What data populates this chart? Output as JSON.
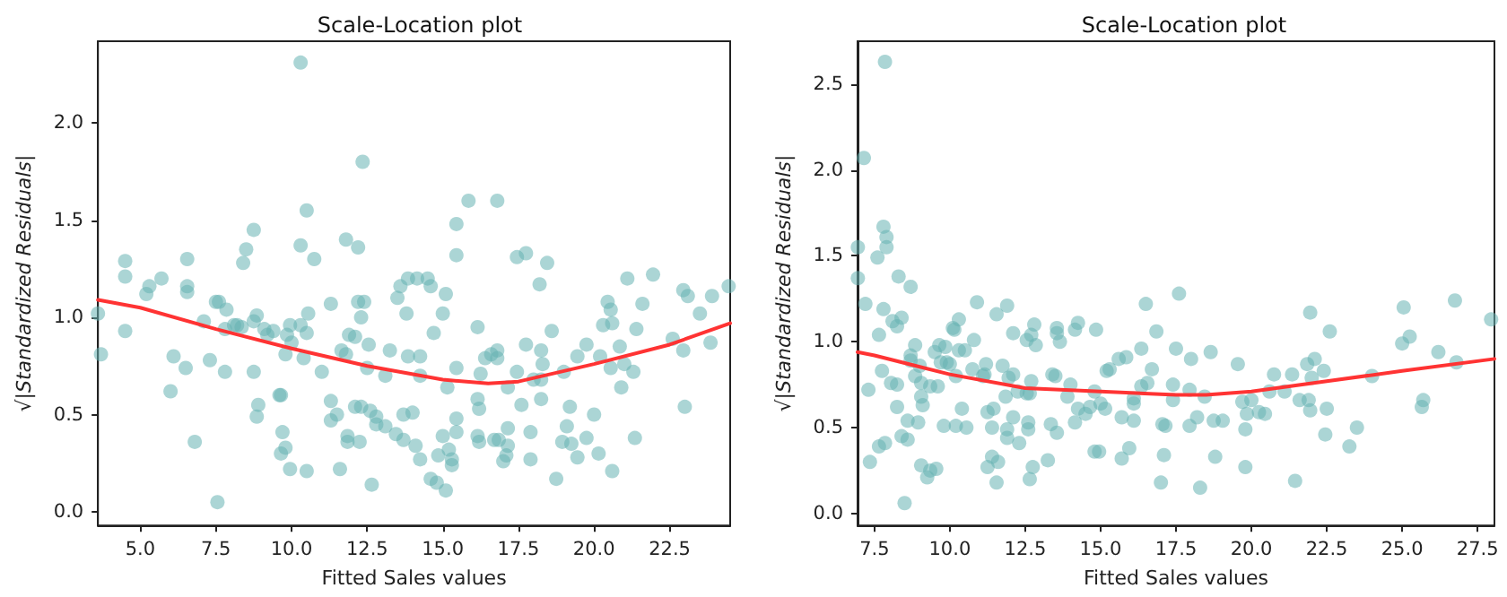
{
  "chart_data": [
    {
      "type": "scatter",
      "title": "Scale-Location plot",
      "xlabel": "Fitted Sales values",
      "ylabel": "√|Standardized Residuals|",
      "xlim": [
        3.6,
        24.5
      ],
      "ylim": [
        -0.07,
        2.42
      ],
      "xticks": [
        {
          "value": 5,
          "label": "5.0"
        },
        {
          "value": 7.5,
          "label": "7.5"
        },
        {
          "value": 10,
          "label": "10.0"
        },
        {
          "value": 12.5,
          "label": "12.5"
        },
        {
          "value": 15,
          "label": "15.0"
        },
        {
          "value": 17.5,
          "label": "17.5"
        },
        {
          "value": 20,
          "label": "20.0"
        },
        {
          "value": 22.5,
          "label": "22.5"
        }
      ],
      "yticks": [
        {
          "value": 0,
          "label": "0.0"
        },
        {
          "value": 0.5,
          "label": "0.5"
        },
        {
          "value": 1,
          "label": "1.0"
        },
        {
          "value": 1.5,
          "label": "1.5"
        },
        {
          "value": 2,
          "label": "2.0"
        }
      ],
      "series": [
        {
          "type": "scatter",
          "marker": "circle",
          "color": "#66b3b3",
          "x": [
            3.6,
            3.7,
            4.5,
            4.5,
            4.5,
            5.2,
            5.3,
            5.7,
            6.1,
            6.0,
            6.55,
            6.55,
            6.55,
            6.5,
            6.8,
            7.1,
            7.3,
            7.5,
            7.6,
            7.55,
            7.85,
            7.8,
            7.8,
            8.1,
            8.2,
            8.35,
            8.4,
            8.5,
            8.75,
            8.85,
            8.75,
            8.75,
            8.9,
            8.85,
            9.1,
            9.2,
            9.4,
            9.6,
            9.65,
            9.7,
            9.65,
            9.8,
            9.8,
            9.85,
            9.95,
            10.0,
            9.95,
            10.3,
            10.3,
            10.3,
            10.4,
            10.5,
            10.5,
            10.5,
            10.55,
            10.75,
            11.0,
            11.3,
            11.3,
            11.3,
            11.5,
            11.6,
            11.65,
            11.8,
            11.8,
            11.85,
            11.85,
            11.9,
            12.1,
            12.1,
            12.2,
            12.2,
            12.25,
            12.3,
            12.3,
            12.35,
            12.4,
            12.5,
            12.55,
            12.6,
            12.65,
            12.8,
            12.8,
            13.1,
            13.1,
            13.25,
            13.45,
            13.5,
            13.6,
            13.7,
            13.7,
            13.8,
            13.85,
            13.85,
            14.0,
            14.1,
            14.15,
            14.25,
            14.25,
            14.25,
            14.5,
            14.6,
            14.6,
            14.7,
            14.8,
            14.85,
            15.0,
            15.0,
            15.1,
            15.1,
            15.15,
            15.2,
            15.3,
            15.3,
            15.45,
            15.45,
            15.45,
            15.45,
            15.45,
            15.85,
            16.15,
            16.15,
            16.15,
            16.2,
            16.2,
            16.25,
            16.4,
            16.6,
            16.7,
            16.8,
            16.8,
            16.8,
            16.85,
            17.0,
            17.1,
            17.15,
            17.15,
            17.15,
            17.45,
            17.45,
            17.6,
            17.75,
            17.75,
            17.9,
            17.9,
            18.0,
            18.2,
            18.25,
            18.25,
            18.25,
            18.3,
            18.45,
            18.6,
            18.75,
            19.0,
            19.1,
            18.95,
            19.2,
            19.25,
            19.45,
            19.45,
            19.75,
            19.75,
            20.0,
            20.15,
            20.2,
            20.3,
            20.45,
            20.55,
            20.55,
            20.6,
            20.6,
            20.85,
            20.9,
            21.0,
            21.1,
            21.3,
            21.35,
            21.4,
            21.6,
            21.95,
            22.6,
            22.95,
            23.1,
            22.95,
            23.0,
            23.5,
            23.85,
            23.9,
            24.45
          ],
          "values": [
            1.02,
            0.81,
            1.29,
            1.21,
            0.93,
            1.12,
            1.16,
            1.2,
            0.8,
            0.62,
            1.3,
            1.16,
            1.13,
            0.74,
            0.36,
            0.98,
            0.78,
            1.08,
            1.08,
            0.05,
            1.04,
            0.94,
            0.72,
            0.96,
            0.96,
            0.95,
            1.28,
            1.35,
            1.45,
            1.01,
            0.98,
            0.72,
            0.55,
            0.49,
            0.94,
            0.91,
            0.93,
            0.6,
            0.6,
            0.41,
            0.3,
            0.33,
            0.81,
            0.91,
            0.96,
            0.87,
            0.22,
            0.96,
            2.31,
            1.37,
            0.79,
            1.55,
            0.21,
            0.92,
            1.02,
            1.3,
            0.72,
            0.57,
            1.07,
            0.47,
            0.5,
            0.22,
            0.83,
            1.4,
            0.81,
            0.39,
            0.36,
            0.91,
            0.54,
            0.9,
            1.36,
            1.08,
            0.36,
            1.0,
            0.54,
            1.8,
            1.08,
            0.74,
            0.86,
            0.52,
            0.14,
            0.49,
            0.45,
            0.7,
            0.44,
            0.83,
            0.4,
            1.1,
            1.16,
            0.5,
            0.37,
            1.02,
            1.2,
            0.8,
            0.51,
            0.34,
            1.2,
            0.8,
            0.7,
            0.27,
            1.2,
            1.16,
            0.17,
            0.92,
            0.15,
            0.29,
            1.02,
            0.39,
            1.12,
            0.11,
            0.64,
            0.32,
            0.27,
            0.24,
            1.48,
            1.32,
            0.48,
            0.74,
            0.41,
            1.6,
            0.95,
            0.58,
            0.39,
            0.53,
            0.36,
            0.71,
            0.79,
            0.81,
            0.37,
            1.6,
            0.83,
            0.79,
            0.37,
            0.26,
            0.29,
            0.43,
            0.34,
            0.64,
            0.72,
            1.31,
            0.55,
            0.86,
            1.33,
            0.41,
            0.27,
            0.68,
            1.17,
            0.83,
            0.68,
            0.58,
            0.76,
            1.28,
            0.93,
            0.17,
            0.72,
            0.44,
            0.36,
            0.54,
            0.35,
            0.28,
            0.8,
            0.86,
            0.38,
            0.5,
            0.3,
            0.8,
            0.96,
            1.08,
            1.04,
            0.74,
            0.97,
            0.21,
            0.85,
            0.64,
            0.76,
            1.2,
            0.72,
            0.38,
            0.94,
            1.07,
            1.22,
            0.89,
            1.14,
            1.11,
            0.83,
            0.54,
            1.02,
            0.87,
            1.11,
            1.16
          ]
        },
        {
          "type": "line",
          "marker": "none",
          "color": "#ff3333",
          "x": [
            3.6,
            5,
            7.5,
            10,
            12.5,
            15,
            16.5,
            17.5,
            20,
            22.5,
            24.5
          ],
          "values": [
            1.09,
            1.05,
            0.94,
            0.84,
            0.75,
            0.68,
            0.66,
            0.67,
            0.76,
            0.86,
            0.97
          ]
        }
      ]
    },
    {
      "type": "scatter",
      "title": "Scale-Location plot",
      "xlabel": "Fitted Sales values",
      "ylabel": "√|Standardized Residuals|",
      "xlim": [
        6.94,
        28.06
      ],
      "ylim": [
        -0.07,
        2.75
      ],
      "xticks": [
        {
          "value": 7.5,
          "label": "7.5"
        },
        {
          "value": 10,
          "label": "10.0"
        },
        {
          "value": 12.5,
          "label": "12.5"
        },
        {
          "value": 15,
          "label": "15.0"
        },
        {
          "value": 17.5,
          "label": "17.5"
        },
        {
          "value": 20,
          "label": "20.0"
        },
        {
          "value": 22.5,
          "label": "22.5"
        },
        {
          "value": 25,
          "label": "25.0"
        },
        {
          "value": 27.5,
          "label": "27.5"
        }
      ],
      "yticks": [
        {
          "value": 0,
          "label": "0.0"
        },
        {
          "value": 0.5,
          "label": "0.5"
        },
        {
          "value": 1,
          "label": "1.0"
        },
        {
          "value": 1.5,
          "label": "1.5"
        },
        {
          "value": 2,
          "label": "2.0"
        },
        {
          "value": 2.5,
          "label": "2.5"
        }
      ],
      "series": [
        {
          "type": "scatter",
          "marker": "circle",
          "color": "#66b3b3",
          "x": [
            6.95,
            6.95,
            7.15,
            7.2,
            7.3,
            7.35,
            7.6,
            7.65,
            7.75,
            7.65,
            7.8,
            7.8,
            7.85,
            7.9,
            7.9,
            7.85,
            8.05,
            8.1,
            8.25,
            8.25,
            8.25,
            8.3,
            8.4,
            8.4,
            8.5,
            8.6,
            8.6,
            8.7,
            8.7,
            8.7,
            8.85,
            8.85,
            8.95,
            9.0,
            9.05,
            9.05,
            9.1,
            9.05,
            9.25,
            9.35,
            9.35,
            9.5,
            9.55,
            9.6,
            9.65,
            9.7,
            9.8,
            9.85,
            9.9,
            10.0,
            10.1,
            10.15,
            10.2,
            10.2,
            10.3,
            10.3,
            10.4,
            10.5,
            10.55,
            10.8,
            10.75,
            10.9,
            11.1,
            11.15,
            11.2,
            11.25,
            11.25,
            11.4,
            11.4,
            11.45,
            11.55,
            11.55,
            11.6,
            11.75,
            11.85,
            11.9,
            11.9,
            11.9,
            11.95,
            12.1,
            12.1,
            12.1,
            12.25,
            12.3,
            12.55,
            12.55,
            12.6,
            12.6,
            12.7,
            12.7,
            12.65,
            12.65,
            12.75,
            12.8,
            12.85,
            13.25,
            13.35,
            13.4,
            13.5,
            13.55,
            13.55,
            13.55,
            13.65,
            13.9,
            14.0,
            14.15,
            14.15,
            14.25,
            14.25,
            14.5,
            14.65,
            14.8,
            14.8,
            14.85,
            14.95,
            15.0,
            15.15,
            15.2,
            15.3,
            15.6,
            15.7,
            15.7,
            15.85,
            15.95,
            16.1,
            16.1,
            16.1,
            16.35,
            16.35,
            16.5,
            16.55,
            16.7,
            16.85,
            17.0,
            17.05,
            17.1,
            17.15,
            17.4,
            17.4,
            17.5,
            17.6,
            17.95,
            17.95,
            18.0,
            18.2,
            18.3,
            18.45,
            18.65,
            18.75,
            18.8,
            19.05,
            19.55,
            19.7,
            19.8,
            19.8,
            19.85,
            20.0,
            20.25,
            20.45,
            20.6,
            20.75,
            21.1,
            21.35,
            21.45,
            21.6,
            21.85,
            21.9,
            21.95,
            21.95,
            22.0,
            22.1,
            22.4,
            22.45,
            22.5,
            22.6,
            23.25,
            23.5,
            24.0,
            25.0,
            25.05,
            25.25,
            25.65,
            25.7,
            26.2,
            26.75,
            26.8,
            27.95
          ],
          "values": [
            1.55,
            1.37,
            2.07,
            1.22,
            0.72,
            0.3,
            1.49,
            1.04,
            0.83,
            0.39,
            1.19,
            1.67,
            2.63,
            1.61,
            1.55,
            0.41,
            0.76,
            1.12,
            1.09,
            0.75,
            0.62,
            1.38,
            1.14,
            0.45,
            0.06,
            0.54,
            0.43,
            1.32,
            0.92,
            0.89,
            0.98,
            0.8,
            0.53,
            0.86,
            0.76,
            0.68,
            0.63,
            0.28,
            0.21,
            0.74,
            0.25,
            0.94,
            0.26,
            0.74,
            0.98,
            0.88,
            0.51,
            0.97,
            0.88,
            0.87,
            1.08,
            1.07,
            0.8,
            0.51,
            1.13,
            0.95,
            0.61,
            0.95,
            0.5,
            1.01,
            0.84,
            1.23,
            0.8,
            0.81,
            0.87,
            0.59,
            0.27,
            0.5,
            0.33,
            0.61,
            1.16,
            0.18,
            0.3,
            0.86,
            0.68,
            1.21,
            0.49,
            0.44,
            0.79,
            1.05,
            0.81,
            0.56,
            0.71,
            0.41,
            0.7,
            1.01,
            0.49,
            0.53,
            1.04,
            0.77,
            0.7,
            0.2,
            0.27,
            1.1,
            0.98,
            0.31,
            0.52,
            0.81,
            0.8,
            1.08,
            1.05,
            0.47,
            1.0,
            0.68,
            0.75,
            0.53,
            1.07,
            1.11,
            0.61,
            0.58,
            0.62,
            0.71,
            0.36,
            1.07,
            0.36,
            0.64,
            0.61,
            0.83,
            0.84,
            0.9,
            0.56,
            0.32,
            0.91,
            0.38,
            0.67,
            0.64,
            0.54,
            0.74,
            0.96,
            1.22,
            0.76,
            0.84,
            1.06,
            0.18,
            0.52,
            0.34,
            0.51,
            0.75,
            0.66,
            0.96,
            1.28,
            0.72,
            0.51,
            0.9,
            0.56,
            0.15,
            0.68,
            0.94,
            0.54,
            0.33,
            0.54,
            0.87,
            0.65,
            0.49,
            0.27,
            0.58,
            0.66,
            0.59,
            0.58,
            0.71,
            0.81,
            0.71,
            0.81,
            0.19,
            0.66,
            0.87,
            0.66,
            1.17,
            0.6,
            0.79,
            0.9,
            0.83,
            0.46,
            0.61,
            1.06,
            0.39,
            0.5,
            0.8,
            0.99,
            1.2,
            1.03,
            0.62,
            0.66,
            0.94,
            1.24,
            0.88,
            1.13
          ]
        },
        {
          "type": "line",
          "marker": "none",
          "color": "#ff3333",
          "x": [
            6.94,
            7.5,
            10,
            12.5,
            15,
            17.5,
            18.5,
            20,
            22.5,
            25,
            28.06
          ],
          "values": [
            0.94,
            0.92,
            0.81,
            0.73,
            0.71,
            0.69,
            0.69,
            0.71,
            0.77,
            0.83,
            0.9
          ]
        }
      ]
    }
  ]
}
